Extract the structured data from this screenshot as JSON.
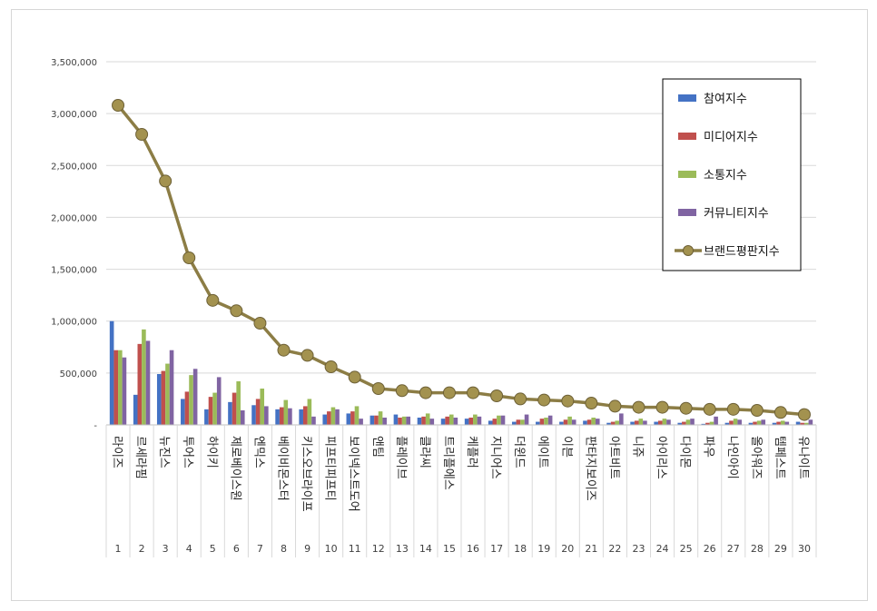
{
  "chart_data": {
    "type": "bar",
    "title": "",
    "xlabel": "",
    "ylabel": "",
    "ylim": [
      0,
      3500000
    ],
    "yticks": [
      {
        "value": 0,
        "label": "-"
      },
      {
        "value": 500000,
        "label": "500,000"
      },
      {
        "value": 1000000,
        "label": "1,000,000"
      },
      {
        "value": 1500000,
        "label": "1,500,000"
      },
      {
        "value": 2000000,
        "label": "2,000,000"
      },
      {
        "value": 2500000,
        "label": "2,500,000"
      },
      {
        "value": 3000000,
        "label": "3,000,000"
      },
      {
        "value": 3500000,
        "label": "3,500,000"
      }
    ],
    "grid": true,
    "legend_position": "top-right",
    "categories": [
      "라이즈",
      "르세라핌",
      "뉴진스",
      "투어스",
      "하이키",
      "제로베이스원",
      "엔믹스",
      "베이비몬스터",
      "키스오브라이프",
      "피프티피프티",
      "보이넥스트도어",
      "앤팀",
      "플레이브",
      "클라씨",
      "트리플에스",
      "케플러",
      "지니어스",
      "더윈드",
      "에이트",
      "이븐",
      "판타지보이즈",
      "아트비트",
      "니쥬",
      "아이리스",
      "다이몬",
      "파우",
      "나인아이",
      "올아워즈",
      "템페스트",
      "유나이트"
    ],
    "ranks": [
      "1",
      "2",
      "3",
      "4",
      "5",
      "6",
      "7",
      "8",
      "9",
      "10",
      "11",
      "12",
      "13",
      "14",
      "15",
      "16",
      "17",
      "18",
      "19",
      "20",
      "21",
      "22",
      "23",
      "24",
      "25",
      "26",
      "27",
      "28",
      "29",
      "30"
    ],
    "series": [
      {
        "name": "참여지수",
        "kind": "bar",
        "color": "#4472c4",
        "values": [
          1000000,
          290000,
          490000,
          250000,
          150000,
          220000,
          190000,
          150000,
          150000,
          100000,
          110000,
          90000,
          100000,
          70000,
          60000,
          60000,
          40000,
          30000,
          30000,
          30000,
          40000,
          20000,
          30000,
          30000,
          20000,
          10000,
          20000,
          20000,
          20000,
          30000
        ]
      },
      {
        "name": "미디어지수",
        "kind": "bar",
        "color": "#c0504d",
        "values": [
          720000,
          780000,
          520000,
          320000,
          270000,
          310000,
          250000,
          170000,
          180000,
          130000,
          130000,
          90000,
          70000,
          80000,
          80000,
          70000,
          60000,
          50000,
          60000,
          50000,
          50000,
          30000,
          40000,
          40000,
          30000,
          20000,
          40000,
          30000,
          30000,
          20000
        ]
      },
      {
        "name": "소통지수",
        "kind": "bar",
        "color": "#9bbb59",
        "values": [
          720000,
          920000,
          590000,
          480000,
          310000,
          420000,
          350000,
          240000,
          250000,
          170000,
          180000,
          130000,
          80000,
          110000,
          100000,
          100000,
          90000,
          50000,
          70000,
          80000,
          70000,
          40000,
          60000,
          60000,
          50000,
          30000,
          60000,
          40000,
          40000,
          20000
        ]
      },
      {
        "name": "커뮤니티지수",
        "kind": "bar",
        "color": "#8064a2",
        "values": [
          650000,
          810000,
          720000,
          540000,
          460000,
          140000,
          180000,
          160000,
          80000,
          150000,
          60000,
          70000,
          80000,
          60000,
          70000,
          80000,
          90000,
          100000,
          90000,
          50000,
          60000,
          110000,
          40000,
          50000,
          60000,
          80000,
          50000,
          50000,
          30000,
          50000
        ]
      },
      {
        "name": "브랜드평판지수",
        "kind": "line",
        "color": "#8c7d45",
        "marker_color": "#a3924f",
        "values": [
          3080000,
          2800000,
          2350000,
          1610000,
          1200000,
          1100000,
          980000,
          720000,
          670000,
          560000,
          460000,
          350000,
          330000,
          310000,
          310000,
          310000,
          280000,
          250000,
          240000,
          230000,
          210000,
          180000,
          170000,
          170000,
          160000,
          150000,
          150000,
          140000,
          120000,
          100000
        ]
      }
    ]
  }
}
